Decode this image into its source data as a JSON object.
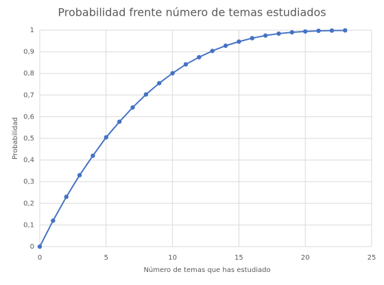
{
  "chart_data": {
    "type": "line",
    "title": "Probabilidad frente número de temas estudiados",
    "x_label": "Número  de temas que has estudiado",
    "y_label": "Probabilidad",
    "x": [
      0,
      1,
      2,
      3,
      4,
      5,
      6,
      7,
      8,
      9,
      10,
      11,
      12,
      13,
      14,
      15,
      16,
      17,
      18,
      19,
      20,
      21,
      22,
      23
    ],
    "series": [
      {
        "name": "Probabilidad",
        "color": "#4472c4",
        "values": [
          0,
          0.12,
          0.23,
          0.33,
          0.42,
          0.505,
          0.577,
          0.643,
          0.703,
          0.755,
          0.801,
          0.842,
          0.875,
          0.904,
          0.928,
          0.947,
          0.963,
          0.975,
          0.984,
          0.99,
          0.994,
          0.997,
          0.998,
          0.999
        ]
      }
    ],
    "xlim": [
      0,
      25
    ],
    "xticks": [
      0,
      5,
      10,
      15,
      20,
      25
    ],
    "ylim": [
      0,
      1
    ],
    "yticks": [
      0,
      {
        "value": 0.1,
        "label": "0,1"
      },
      {
        "value": 0.2,
        "label": "0,2"
      },
      {
        "value": 0.3,
        "label": "0,3"
      },
      {
        "value": 0.4,
        "label": "0,4"
      },
      {
        "value": 0.5,
        "label": "0,5"
      },
      {
        "value": 0.6,
        "label": "0,6"
      },
      {
        "value": 0.7,
        "label": "0,7"
      },
      {
        "value": 0.8,
        "label": "0,8"
      },
      {
        "value": 0.9,
        "label": "0,9"
      },
      1
    ],
    "grid": true
  }
}
